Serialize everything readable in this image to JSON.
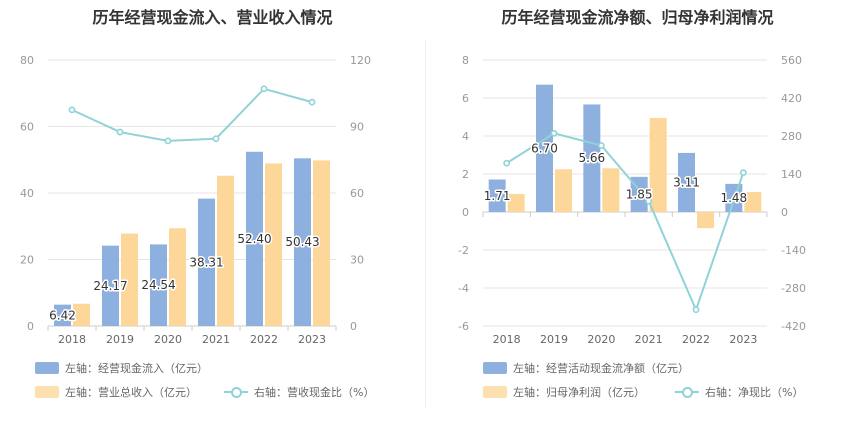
{
  "colors": {
    "bar_primary": "#8eb0de",
    "bar_secondary": "#fdd79a",
    "line": "#8fd3d8",
    "grid": "#e6e6e6",
    "axis": "#cccccc"
  },
  "chart_data": [
    {
      "type": "bar",
      "title": "历年经营现金流入、营业收入情况",
      "categories": [
        "2018",
        "2019",
        "2020",
        "2021",
        "2022",
        "2023"
      ],
      "left_axis": {
        "ylim": [
          0,
          80
        ],
        "ticks": [
          "0",
          "20",
          "40",
          "60",
          "80"
        ]
      },
      "right_axis": {
        "ylim": [
          0,
          120
        ],
        "ticks": [
          "0",
          "30",
          "60",
          "90",
          "120"
        ]
      },
      "series": [
        {
          "name": "左轴：经营现金流入（亿元）",
          "type": "bar",
          "axis": "left",
          "values": [
            6.42,
            24.17,
            24.54,
            38.31,
            52.4,
            50.43
          ],
          "labels": [
            "6.42",
            "24.17",
            "24.54",
            "38.31",
            "52.40",
            "50.43"
          ]
        },
        {
          "name": "左轴：营业总收入（亿元）",
          "type": "bar",
          "axis": "left",
          "values": [
            6.7,
            27.8,
            29.4,
            45.2,
            48.9,
            49.8
          ]
        },
        {
          "name": "右轴：营收现金比（%）",
          "type": "line",
          "axis": "right",
          "values": [
            97.5,
            87.5,
            83.5,
            84.5,
            107.0,
            101.0
          ]
        }
      ],
      "legend_placement": "bottom",
      "grid": true
    },
    {
      "type": "bar",
      "title": "历年经营现金流净额、归母净利润情况",
      "categories": [
        "2018",
        "2019",
        "2020",
        "2021",
        "2022",
        "2023"
      ],
      "left_axis": {
        "ylim": [
          -6,
          8
        ],
        "ticks": [
          "-6",
          "-4",
          "-2",
          "0",
          "2",
          "4",
          "6",
          "8"
        ]
      },
      "right_axis": {
        "ylim": [
          -420,
          560
        ],
        "ticks": [
          "-420",
          "-280",
          "-140",
          "0",
          "140",
          "280",
          "420",
          "560"
        ]
      },
      "series": [
        {
          "name": "左轴：经营活动现金流净额（亿元）",
          "type": "bar",
          "axis": "left",
          "values": [
            1.71,
            6.7,
            5.66,
            1.85,
            3.11,
            1.48
          ],
          "labels": [
            "1.71",
            "6.70",
            "5.66",
            "1.85",
            "3.11",
            "1.48"
          ]
        },
        {
          "name": "左轴：归母净利润（亿元）",
          "type": "bar",
          "axis": "left",
          "values": [
            0.95,
            2.25,
            2.3,
            4.95,
            -0.85,
            1.05
          ]
        },
        {
          "name": "右轴：净现比（%）",
          "type": "line",
          "axis": "right",
          "values": [
            180,
            290,
            245,
            40,
            -360,
            145
          ]
        }
      ],
      "legend_placement": "bottom",
      "grid": true
    }
  ]
}
